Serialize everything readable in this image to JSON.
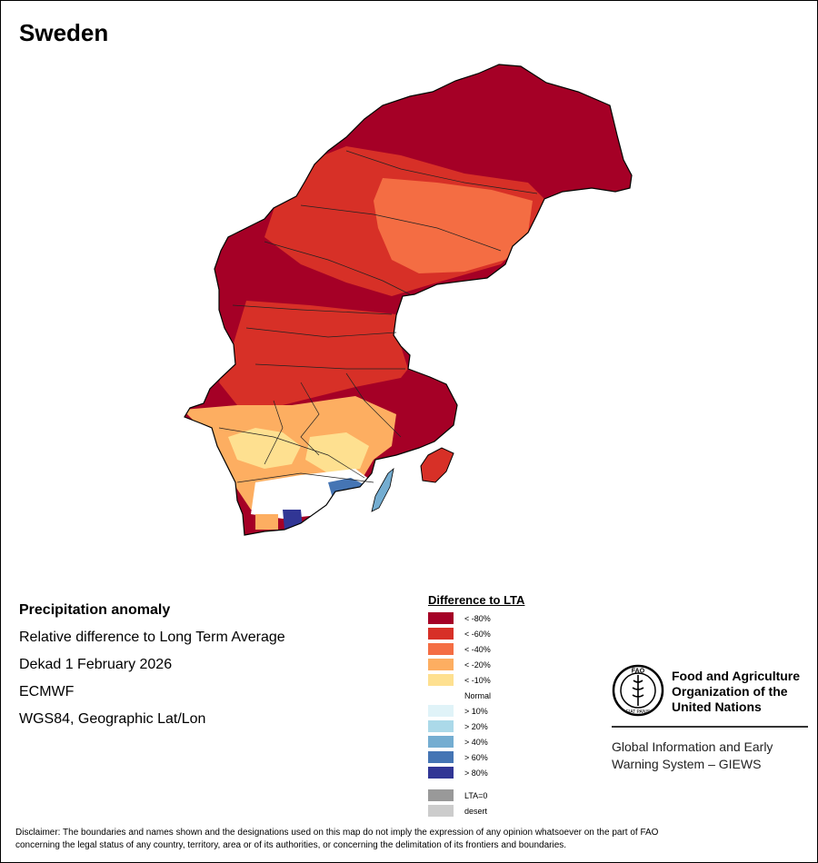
{
  "title": "Sweden",
  "info": {
    "line1": "Precipitation anomaly",
    "line2": "Relative difference to Long Term Average",
    "line3": "Dekad 1 February 2026",
    "line4": "ECMWF",
    "line5": "WGS84, Geographic Lat/Lon"
  },
  "legend": {
    "title": "Difference to LTA",
    "items": [
      {
        "label": "< -80%",
        "color": "#a50026"
      },
      {
        "label": "< -60%",
        "color": "#d73027"
      },
      {
        "label": "< -40%",
        "color": "#f46d43"
      },
      {
        "label": "< -20%",
        "color": "#fdae61"
      },
      {
        "label": "< -10%",
        "color": "#fee090"
      },
      {
        "label": "Normal",
        "color": "#ffffff"
      },
      {
        "label": "> 10%",
        "color": "#e0f3f8"
      },
      {
        "label": "> 20%",
        "color": "#abd9e9"
      },
      {
        "label": "> 40%",
        "color": "#74add1"
      },
      {
        "label": "> 60%",
        "color": "#4575b4"
      },
      {
        "label": "> 80%",
        "color": "#313695"
      }
    ],
    "extra": [
      {
        "label": "LTA=0",
        "color": "#999999"
      },
      {
        "label": "desert",
        "color": "#cccccc"
      }
    ]
  },
  "fao": {
    "name1": "Food and Agriculture",
    "name2": "Organization of the",
    "name3": "United Nations",
    "logo_top": "FAO",
    "logo_bottom": "FIAT PANIS",
    "giews1": "Global Information and Early",
    "giews2": "Warning System – GIEWS"
  },
  "disclaimer1": "Disclaimer: The boundaries and names shown and the designations used on this map do not imply the expression of any opinion whatsoever on the part of FAO",
  "disclaimer2": "concerning the legal status of any country, territory, area or of its authorities, or concerning the delimitation of its frontiers and boundaries."
}
